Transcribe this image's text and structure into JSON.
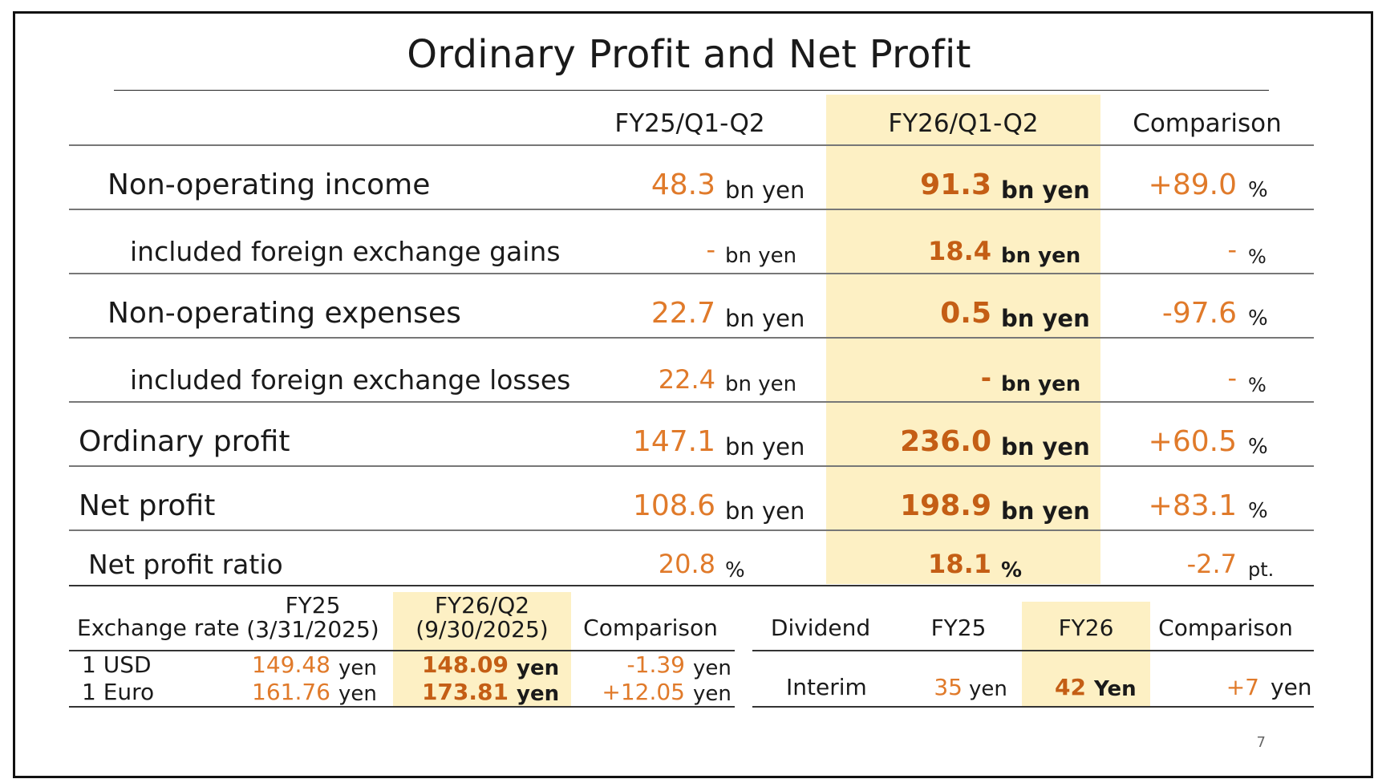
{
  "title": "Ordinary Profit and Net Profit",
  "page_number": "7",
  "main_table": {
    "columns": [
      "FY25/Q1-Q2",
      "FY26/Q1-Q2",
      "Comparison"
    ],
    "rows": [
      {
        "label": "Non-operating income",
        "fy25": "48.3",
        "fy25_unit": "bn yen",
        "fy26": "91.3",
        "fy26_unit": "bn yen",
        "cmp": "+89.0",
        "cmp_unit": "%"
      },
      {
        "label": "included foreign exchange gains",
        "fy25": "-",
        "fy25_unit": "bn yen",
        "fy26": "18.4",
        "fy26_unit": "bn yen",
        "cmp": "-",
        "cmp_unit": "%"
      },
      {
        "label": "Non-operating expenses",
        "fy25": "22.7",
        "fy25_unit": "bn yen",
        "fy26": "0.5",
        "fy26_unit": "bn yen",
        "cmp": "-97.6",
        "cmp_unit": "%"
      },
      {
        "label": "included foreign exchange losses",
        "fy25": "22.4",
        "fy25_unit": "bn yen",
        "fy26": "-",
        "fy26_unit": "bn yen",
        "cmp": "-",
        "cmp_unit": "%"
      },
      {
        "label": "Ordinary profit",
        "fy25": "147.1",
        "fy25_unit": "bn yen",
        "fy26": "236.0",
        "fy26_unit": "bn yen",
        "cmp": "+60.5",
        "cmp_unit": "%"
      },
      {
        "label": "Net profit",
        "fy25": "108.6",
        "fy25_unit": "bn yen",
        "fy26": "198.9",
        "fy26_unit": "bn yen",
        "cmp": "+83.1",
        "cmp_unit": "%"
      },
      {
        "label": "Net profit ratio",
        "fy25": "20.8",
        "fy25_unit": "%",
        "fy26": "18.1",
        "fy26_unit": "%",
        "cmp": "-2.7",
        "cmp_unit": "pt."
      }
    ]
  },
  "exchange_table": {
    "label": "Exchange rate",
    "col1_line1": "FY25",
    "col1_line2": "(3/31/2025)",
    "col2_line1": "FY26/Q2",
    "col2_line2": "(9/30/2025)",
    "col3": "Comparison",
    "rows": [
      {
        "label": "1 USD",
        "fy25": "149.48",
        "fy25_unit": "yen",
        "fy26": "148.09",
        "fy26_unit": "yen",
        "cmp": "-1.39",
        "cmp_unit": "yen"
      },
      {
        "label": "1 Euro",
        "fy25": "161.76",
        "fy25_unit": "yen",
        "fy26": "173.81",
        "fy26_unit": "yen",
        "cmp": "+12.05",
        "cmp_unit": "yen"
      }
    ]
  },
  "dividend_table": {
    "label": "Dividend",
    "col1": "FY25",
    "col2": "FY26",
    "col3": "Comparison",
    "row": {
      "label": "Interim",
      "fy25": "35",
      "fy25_unit": "yen",
      "fy26": "42",
      "fy26_unit": "Yen",
      "cmp": "+7",
      "cmp_unit": "yen"
    }
  }
}
